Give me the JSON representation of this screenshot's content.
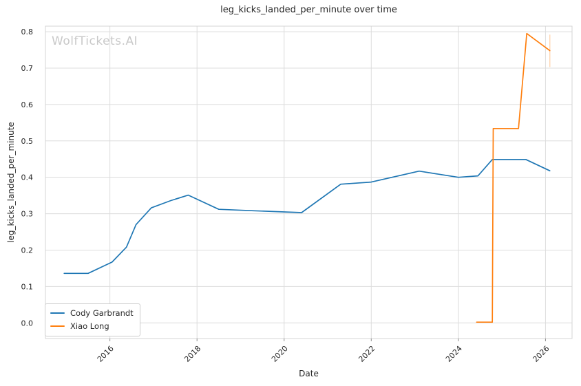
{
  "watermark": "WolfTickets.AI",
  "colors": {
    "series_blue": "#1f77b4",
    "series_orange": "#ff7f0e",
    "grid": "#dcdcdc",
    "spine": "#d4d4d4",
    "tick_mark": "#8c8c8c",
    "text": "#262626",
    "watermark": "#c9c9c9"
  },
  "chart_data": {
    "type": "line",
    "title": "leg_kicks_landed_per_minute over time",
    "xlabel": "Date",
    "ylabel": "leg_kicks_landed_per_minute",
    "grid": true,
    "legend_position": "lower left",
    "xlim": [
      2014.52,
      2026.61
    ],
    "ylim": [
      -0.043,
      0.8153
    ],
    "x_ticks": [
      {
        "value": 2016,
        "label": "2016"
      },
      {
        "value": 2018,
        "label": "2018"
      },
      {
        "value": 2020,
        "label": "2020"
      },
      {
        "value": 2022,
        "label": "2022"
      },
      {
        "value": 2024,
        "label": "2024"
      },
      {
        "value": 2026,
        "label": "2026"
      }
    ],
    "y_ticks": [
      {
        "value": 0.0,
        "label": "0.0"
      },
      {
        "value": 0.1,
        "label": "0.1"
      },
      {
        "value": 0.2,
        "label": "0.2"
      },
      {
        "value": 0.3,
        "label": "0.3"
      },
      {
        "value": 0.4,
        "label": "0.4"
      },
      {
        "value": 0.5,
        "label": "0.5"
      },
      {
        "value": 0.6,
        "label": "0.6"
      },
      {
        "value": 0.7,
        "label": "0.7"
      },
      {
        "value": 0.8,
        "label": "0.8"
      }
    ],
    "series": [
      {
        "name": "Cody Garbrandt",
        "color": "#1f77b4",
        "points": [
          [
            2014.95,
            0.136
          ],
          [
            2015.5,
            0.136
          ],
          [
            2016.05,
            0.167
          ],
          [
            2016.38,
            0.208
          ],
          [
            2016.6,
            0.27
          ],
          [
            2016.95,
            0.316
          ],
          [
            2017.4,
            0.336
          ],
          [
            2017.8,
            0.351
          ],
          [
            2018.5,
            0.312
          ],
          [
            2019.3,
            0.308
          ],
          [
            2020.4,
            0.303
          ],
          [
            2021.3,
            0.381
          ],
          [
            2022.0,
            0.387
          ],
          [
            2023.1,
            0.417
          ],
          [
            2024.0,
            0.4
          ],
          [
            2024.45,
            0.404
          ],
          [
            2024.78,
            0.449
          ],
          [
            2025.55,
            0.449
          ],
          [
            2026.1,
            0.418
          ]
        ]
      },
      {
        "name": "Xiao Long",
        "color": "#ff7f0e",
        "points": [
          [
            2024.42,
            0.002
          ],
          [
            2024.78,
            0.002
          ],
          [
            2024.8,
            0.534
          ],
          [
            2025.38,
            0.534
          ],
          [
            2025.57,
            0.795
          ],
          [
            2026.1,
            0.748
          ]
        ],
        "error_bar": {
          "x": 2026.1,
          "low": 0.703,
          "high": 0.792
        }
      }
    ]
  }
}
